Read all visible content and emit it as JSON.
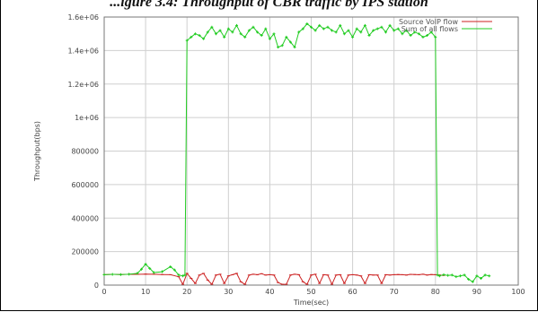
{
  "caption": "...igure 3.4: Throughput of CBR traffic by IPS station",
  "colors": {
    "series_0": "#cc2222",
    "series_1": "#22cc22",
    "grid": "#cfcfcf",
    "axis": "#777777"
  },
  "chart_data": {
    "type": "line",
    "title": "",
    "xlabel": "Time(sec)",
    "ylabel": "Throughput(bps)",
    "xlim": [
      0,
      100
    ],
    "ylim": [
      0,
      1600000
    ],
    "x_ticks": [
      0,
      10,
      20,
      30,
      40,
      50,
      60,
      70,
      80,
      90,
      100
    ],
    "x_tick_labels": [
      "0",
      "10",
      "20",
      "30",
      "40",
      "50",
      "60",
      "70",
      "80",
      "90",
      "100"
    ],
    "y_ticks": [
      0,
      200000,
      400000,
      600000,
      800000,
      1000000,
      1200000,
      1400000,
      1600000
    ],
    "y_tick_labels": [
      "0",
      "200000",
      "400000",
      "600000",
      "800000",
      "1e+06",
      "1.2e+06",
      "1.4e+06",
      "1.6e+06"
    ],
    "grid": true,
    "legend_position": "top-right",
    "series": [
      {
        "name": "Source VoIP flow",
        "x": [
          0,
          2,
          4,
          6,
          8,
          10,
          12,
          14,
          16,
          18,
          19,
          20,
          21,
          22,
          23,
          24,
          25,
          26,
          27,
          28,
          29,
          30,
          31,
          32,
          33,
          34,
          35,
          36,
          37,
          38,
          39,
          40,
          41,
          42,
          43,
          44,
          45,
          46,
          47,
          48,
          49,
          50,
          51,
          52,
          53,
          54,
          55,
          56,
          57,
          58,
          59,
          60,
          61,
          62,
          63,
          64,
          65,
          66,
          67,
          68,
          69,
          70,
          71,
          72,
          73,
          74,
          75,
          76,
          77,
          78,
          79,
          80,
          81,
          82
        ],
        "y": [
          62000,
          64000,
          63000,
          65000,
          64000,
          66000,
          65000,
          63000,
          62000,
          50000,
          5000,
          70000,
          40000,
          10000,
          60000,
          70000,
          30000,
          5000,
          60000,
          65000,
          10000,
          55000,
          62000,
          70000,
          20000,
          5000,
          60000,
          65000,
          62000,
          68000,
          60000,
          62000,
          60000,
          15000,
          5000,
          5000,
          60000,
          65000,
          62000,
          20000,
          5000,
          60000,
          65000,
          10000,
          62000,
          60000,
          5000,
          60000,
          62000,
          10000,
          60000,
          62000,
          60000,
          55000,
          10000,
          62000,
          60000,
          60000,
          10000,
          62000,
          60000,
          62000,
          63000,
          62000,
          60000,
          64000,
          63000,
          62000,
          65000,
          60000,
          63000,
          62000,
          60000,
          58000
        ]
      },
      {
        "name": "Sum of all flows",
        "x": [
          0,
          2,
          4,
          6,
          8,
          9,
          10,
          11,
          12,
          14,
          16,
          17,
          18,
          19,
          19.5,
          20,
          21,
          22,
          23,
          24,
          25,
          26,
          27,
          28,
          29,
          30,
          31,
          32,
          33,
          34,
          35,
          36,
          37,
          38,
          39,
          40,
          41,
          42,
          43,
          44,
          45,
          46,
          47,
          48,
          49,
          50,
          51,
          52,
          53,
          54,
          55,
          56,
          57,
          58,
          59,
          60,
          61,
          62,
          63,
          64,
          65,
          66,
          67,
          68,
          69,
          70,
          71,
          72,
          73,
          74,
          75,
          76,
          77,
          78,
          79,
          80,
          80.5,
          81,
          82,
          83,
          84,
          85,
          86,
          87,
          88,
          89,
          90,
          91,
          92,
          93
        ],
        "y": [
          62000,
          64000,
          63000,
          65000,
          70000,
          95000,
          125000,
          100000,
          75000,
          80000,
          110000,
          90000,
          60000,
          55000,
          60000,
          1460000,
          1480000,
          1500000,
          1490000,
          1470000,
          1510000,
          1540000,
          1500000,
          1520000,
          1480000,
          1530000,
          1510000,
          1550000,
          1500000,
          1480000,
          1520000,
          1540000,
          1510000,
          1490000,
          1530000,
          1470000,
          1500000,
          1420000,
          1430000,
          1480000,
          1450000,
          1420000,
          1510000,
          1530000,
          1560000,
          1540000,
          1520000,
          1550000,
          1530000,
          1540000,
          1520000,
          1510000,
          1550000,
          1500000,
          1520000,
          1480000,
          1530000,
          1510000,
          1550000,
          1490000,
          1520000,
          1530000,
          1540000,
          1510000,
          1550000,
          1520000,
          1530000,
          1500000,
          1520000,
          1490000,
          1510000,
          1500000,
          1480000,
          1490000,
          1510000,
          1480000,
          60000,
          55000,
          62000,
          58000,
          60000,
          50000,
          55000,
          60000,
          35000,
          20000,
          55000,
          40000,
          60000,
          55000
        ]
      }
    ]
  }
}
